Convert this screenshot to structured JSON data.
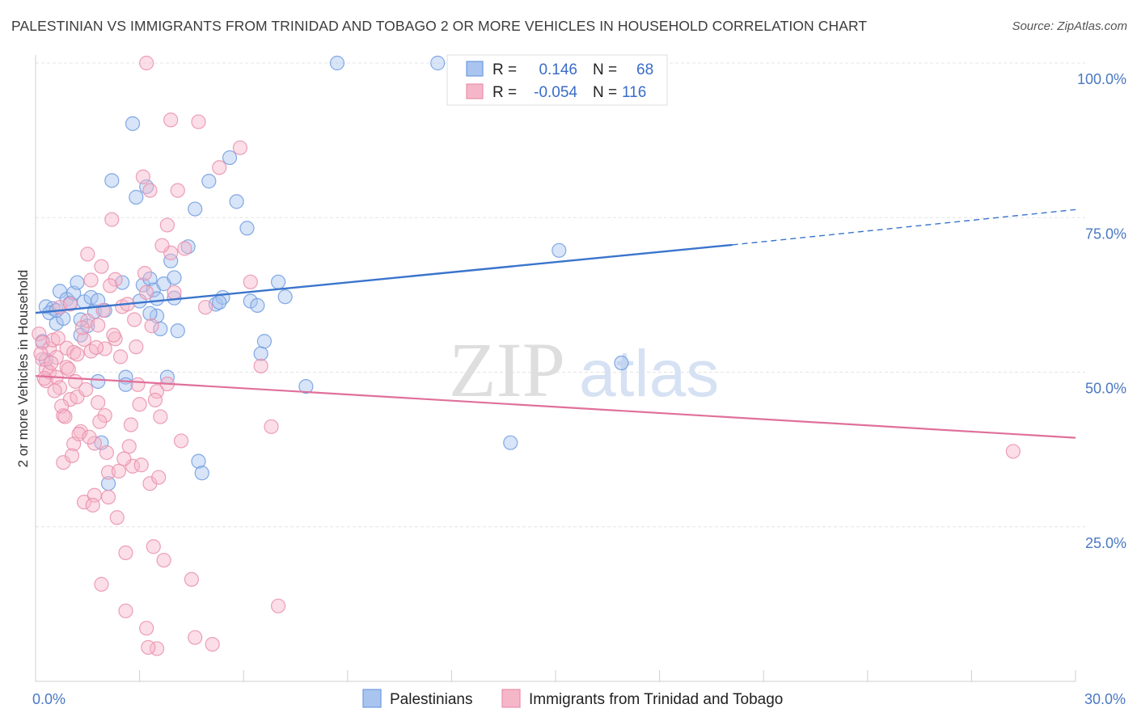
{
  "title": "PALESTINIAN VS IMMIGRANTS FROM TRINIDAD AND TOBAGO 2 OR MORE VEHICLES IN HOUSEHOLD CORRELATION CHART",
  "source": "Source: ZipAtlas.com",
  "watermark": {
    "zip": "ZIP",
    "atlas": "atlas"
  },
  "legend_box": {
    "rows": [
      {
        "r_label": "R =",
        "r_value": "0.146",
        "n_label": "N =",
        "n_value": "68",
        "color": "#a9c4ee"
      },
      {
        "r_label": "R =",
        "r_value": "-0.054",
        "n_label": "N =",
        "n_value": "116",
        "color": "#f6b6c9"
      }
    ]
  },
  "chart_data": {
    "type": "scatter",
    "xlabel": "",
    "ylabel": "2 or more Vehicles in Household",
    "xlim": [
      0,
      30
    ],
    "ylim": [
      0,
      100
    ],
    "x_ticks": [
      "0.0%",
      "30.0%"
    ],
    "y_ticks": [
      "100.0%",
      "75.0%",
      "50.0%",
      "25.0%"
    ],
    "grid": true,
    "legend_position": "bottom",
    "series": [
      {
        "name": "Palestinians",
        "color": "#6d9be0",
        "fill": "#a9c4ee",
        "trend": {
          "x0": 0,
          "y0": 59.6,
          "x1": 20.1,
          "y1": 70.6,
          "dash_to_x": 30,
          "dash_to_y": 76.3
        },
        "points": [
          [
            0.3,
            60.6
          ],
          [
            0.5,
            60.3
          ],
          [
            0.4,
            59.6
          ],
          [
            0.6,
            57.9
          ],
          [
            0.7,
            63.1
          ],
          [
            0.8,
            58.7
          ],
          [
            0.9,
            61.8
          ],
          [
            1.0,
            61.2
          ],
          [
            1.1,
            62.8
          ],
          [
            1.2,
            64.5
          ],
          [
            1.3,
            56.0
          ],
          [
            1.4,
            61.4
          ],
          [
            1.5,
            57.5
          ],
          [
            1.6,
            62.1
          ],
          [
            1.7,
            59.8
          ],
          [
            1.8,
            61.6
          ],
          [
            1.8,
            48.5
          ],
          [
            1.9,
            38.6
          ],
          [
            2.1,
            32.0
          ],
          [
            2.2,
            81.0
          ],
          [
            2.5,
            64.5
          ],
          [
            2.6,
            49.2
          ],
          [
            2.6,
            48.0
          ],
          [
            2.8,
            90.2
          ],
          [
            2.9,
            78.3
          ],
          [
            3.0,
            61.5
          ],
          [
            3.1,
            64.1
          ],
          [
            3.2,
            80.0
          ],
          [
            3.3,
            65.1
          ],
          [
            3.4,
            63.3
          ],
          [
            3.5,
            59.1
          ],
          [
            3.5,
            61.9
          ],
          [
            3.6,
            57.0
          ],
          [
            3.7,
            64.3
          ],
          [
            3.8,
            49.2
          ],
          [
            3.9,
            68.0
          ],
          [
            4.0,
            65.3
          ],
          [
            4.1,
            56.7
          ],
          [
            4.4,
            70.3
          ],
          [
            4.6,
            76.4
          ],
          [
            4.7,
            35.6
          ],
          [
            4.8,
            33.7
          ],
          [
            5.0,
            80.9
          ],
          [
            5.2,
            61.0
          ],
          [
            5.4,
            62.1
          ],
          [
            5.6,
            84.7
          ],
          [
            5.8,
            77.6
          ],
          [
            6.1,
            73.3
          ],
          [
            6.2,
            61.5
          ],
          [
            6.4,
            60.8
          ],
          [
            6.5,
            53.0
          ],
          [
            6.6,
            55.0
          ],
          [
            7.0,
            64.6
          ],
          [
            7.2,
            62.2
          ],
          [
            7.8,
            47.7
          ],
          [
            8.7,
            100.0
          ],
          [
            11.6,
            100.0
          ],
          [
            13.7,
            38.6
          ],
          [
            15.1,
            69.7
          ],
          [
            16.9,
            51.5
          ],
          [
            0.2,
            55.0
          ],
          [
            0.3,
            52.0
          ],
          [
            1.3,
            58.5
          ],
          [
            2.0,
            60.0
          ],
          [
            3.3,
            59.5
          ],
          [
            4.0,
            62.0
          ],
          [
            5.3,
            61.3
          ],
          [
            0.6,
            60.0
          ]
        ]
      },
      {
        "name": "Immigrants from Trinidad and Tobago",
        "color": "#e98fab",
        "fill": "#f6b6c9",
        "trend": {
          "x0": 0,
          "y0": 49.4,
          "x1": 30,
          "y1": 39.4
        },
        "points": [
          [
            0.1,
            56.2
          ],
          [
            0.2,
            54.8
          ],
          [
            0.2,
            52.1
          ],
          [
            0.3,
            50.5
          ],
          [
            0.3,
            48.6
          ],
          [
            0.4,
            53.8
          ],
          [
            0.4,
            50.0
          ],
          [
            0.5,
            55.2
          ],
          [
            0.6,
            52.4
          ],
          [
            0.6,
            49.2
          ],
          [
            0.7,
            47.5
          ],
          [
            0.7,
            60.5
          ],
          [
            0.8,
            35.4
          ],
          [
            0.8,
            43.0
          ],
          [
            0.9,
            53.9
          ],
          [
            0.9,
            50.8
          ],
          [
            1.0,
            61.0
          ],
          [
            1.0,
            45.6
          ],
          [
            1.1,
            53.2
          ],
          [
            1.1,
            38.4
          ],
          [
            1.2,
            52.9
          ],
          [
            1.2,
            46.0
          ],
          [
            1.3,
            40.4
          ],
          [
            1.4,
            55.3
          ],
          [
            1.4,
            29.0
          ],
          [
            1.5,
            69.1
          ],
          [
            1.5,
            58.3
          ],
          [
            1.6,
            64.9
          ],
          [
            1.6,
            53.4
          ],
          [
            1.7,
            38.5
          ],
          [
            1.7,
            30.1
          ],
          [
            1.8,
            57.6
          ],
          [
            1.8,
            45.1
          ],
          [
            1.9,
            15.7
          ],
          [
            1.9,
            67.1
          ],
          [
            2.0,
            53.8
          ],
          [
            2.0,
            43.0
          ],
          [
            2.1,
            33.8
          ],
          [
            2.1,
            29.8
          ],
          [
            2.2,
            74.7
          ],
          [
            2.3,
            65.0
          ],
          [
            2.3,
            55.4
          ],
          [
            2.4,
            34.0
          ],
          [
            2.5,
            60.6
          ],
          [
            2.6,
            20.8
          ],
          [
            2.6,
            11.4
          ],
          [
            2.7,
            38.0
          ],
          [
            2.8,
            34.8
          ],
          [
            2.9,
            54.1
          ],
          [
            3.0,
            44.8
          ],
          [
            3.1,
            81.6
          ],
          [
            3.2,
            8.6
          ],
          [
            3.2,
            62.9
          ],
          [
            3.3,
            79.4
          ],
          [
            3.3,
            32.0
          ],
          [
            3.4,
            21.8
          ],
          [
            3.5,
            5.3
          ],
          [
            3.5,
            46.9
          ],
          [
            3.6,
            42.8
          ],
          [
            3.7,
            19.6
          ],
          [
            3.8,
            73.8
          ],
          [
            3.8,
            48.1
          ],
          [
            3.9,
            69.3
          ],
          [
            3.9,
            90.8
          ],
          [
            4.0,
            62.9
          ],
          [
            4.1,
            79.4
          ],
          [
            4.2,
            38.9
          ],
          [
            4.3,
            70.0
          ],
          [
            4.5,
            16.5
          ],
          [
            4.6,
            7.1
          ],
          [
            4.7,
            90.5
          ],
          [
            4.9,
            60.5
          ],
          [
            5.1,
            6.0
          ],
          [
            5.3,
            83.1
          ],
          [
            5.9,
            86.3
          ],
          [
            6.2,
            64.6
          ],
          [
            6.5,
            51.0
          ],
          [
            6.8,
            41.2
          ],
          [
            7.0,
            12.2
          ],
          [
            28.2,
            37.2
          ],
          [
            3.2,
            100.0
          ],
          [
            0.15,
            53.0
          ],
          [
            0.25,
            49.0
          ],
          [
            0.45,
            51.5
          ],
          [
            0.55,
            47.0
          ],
          [
            0.65,
            55.5
          ],
          [
            0.75,
            44.5
          ],
          [
            0.85,
            42.8
          ],
          [
            0.95,
            50.5
          ],
          [
            1.05,
            36.5
          ],
          [
            1.15,
            48.5
          ],
          [
            1.25,
            40.0
          ],
          [
            1.35,
            57.2
          ],
          [
            1.45,
            47.2
          ],
          [
            1.55,
            39.5
          ],
          [
            1.65,
            28.5
          ],
          [
            1.75,
            54.0
          ],
          [
            1.85,
            42.0
          ],
          [
            1.95,
            60.0
          ],
          [
            2.05,
            37.0
          ],
          [
            2.15,
            64.0
          ],
          [
            2.25,
            56.0
          ],
          [
            2.35,
            26.5
          ],
          [
            2.45,
            52.5
          ],
          [
            2.55,
            36.0
          ],
          [
            2.65,
            61.0
          ],
          [
            2.75,
            41.5
          ],
          [
            2.85,
            58.5
          ],
          [
            2.95,
            48.0
          ],
          [
            3.05,
            35.0
          ],
          [
            3.15,
            66.0
          ],
          [
            3.25,
            5.5
          ],
          [
            3.35,
            57.5
          ],
          [
            3.45,
            45.5
          ],
          [
            3.55,
            33.0
          ],
          [
            3.65,
            70.5
          ]
        ]
      }
    ]
  }
}
